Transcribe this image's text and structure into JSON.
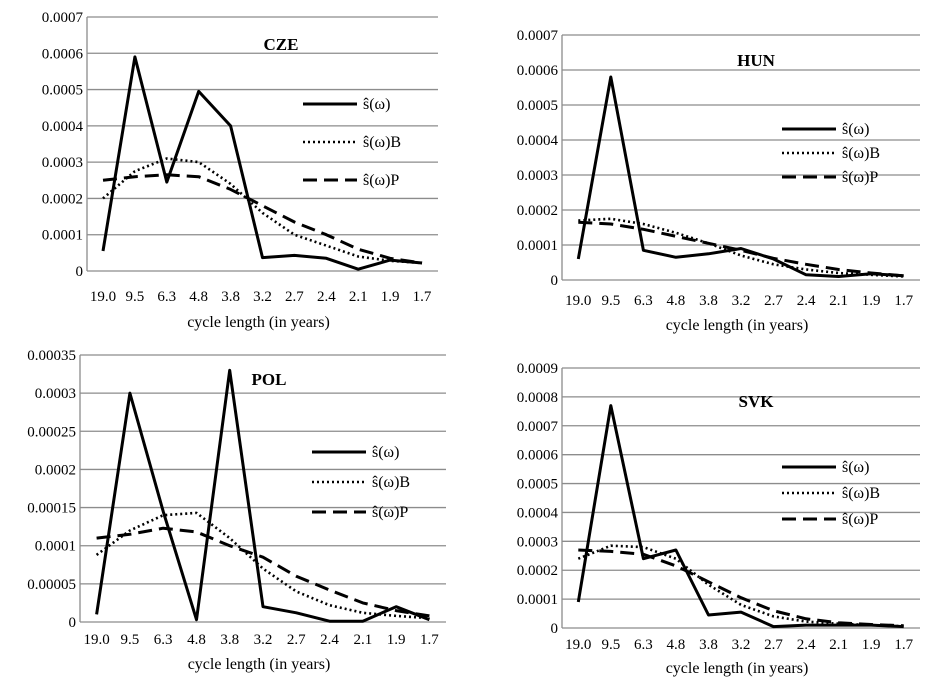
{
  "chart_data": [
    {
      "type": "line",
      "title": "CZE",
      "xlabel": "cycle length (in years)",
      "ylabel": "",
      "ylim": [
        0,
        0.0007
      ],
      "yticks": [
        "0",
        "0.0001",
        "0.0002",
        "0.0003",
        "0.0004",
        "0.0005",
        "0.0006",
        "0.0007"
      ],
      "categories": [
        "19.0",
        "9.5",
        "6.3",
        "4.8",
        "3.8",
        "3.2",
        "2.7",
        "2.4",
        "2.1",
        "1.9",
        "1.7"
      ],
      "legend_position": "right",
      "series": [
        {
          "name": "ŝ(ω)",
          "style": "solid",
          "values": [
            5.5e-05,
            0.00059,
            0.000245,
            0.000495,
            0.0004,
            3.7e-05,
            4.3e-05,
            3.5e-05,
            5e-06,
            3e-05,
            2.2e-05
          ]
        },
        {
          "name": "ŝ(ω)B",
          "style": "dotted",
          "values": [
            0.0002,
            0.000275,
            0.00031,
            0.0003,
            0.00024,
            0.00016,
            0.0001,
            7e-05,
            4e-05,
            2.8e-05,
            2.2e-05
          ]
        },
        {
          "name": "ŝ(ω)P",
          "style": "dashed",
          "values": [
            0.00025,
            0.00026,
            0.000265,
            0.00026,
            0.000225,
            0.00018,
            0.000135,
            0.0001,
            6e-05,
            3.5e-05,
            2.2e-05
          ]
        }
      ]
    },
    {
      "type": "line",
      "title": "HUN",
      "xlabel": "cycle length (in years)",
      "ylabel": "",
      "ylim": [
        0,
        0.0007
      ],
      "yticks": [
        "0",
        "0.0001",
        "0.0002",
        "0.0003",
        "0.0004",
        "0.0005",
        "0.0006",
        "0.0007"
      ],
      "categories": [
        "19.0",
        "9.5",
        "6.3",
        "4.8",
        "3.8",
        "3.2",
        "2.7",
        "2.4",
        "2.1",
        "1.9",
        "1.7"
      ],
      "legend_position": "right",
      "series": [
        {
          "name": "ŝ(ω)",
          "style": "solid",
          "values": [
            6e-05,
            0.00058,
            8.5e-05,
            6.5e-05,
            7.5e-05,
            9e-05,
            6e-05,
            1.5e-05,
            1e-05,
            1.8e-05,
            1.2e-05
          ]
        },
        {
          "name": "ŝ(ω)B",
          "style": "dotted",
          "values": [
            0.00017,
            0.000175,
            0.00016,
            0.000135,
            0.000105,
            7e-05,
            4.5e-05,
            3e-05,
            2e-05,
            1.5e-05,
            1e-05
          ]
        },
        {
          "name": "ŝ(ω)P",
          "style": "dashed",
          "values": [
            0.000165,
            0.00016,
            0.000145,
            0.000125,
            0.000105,
            8.5e-05,
            6.2e-05,
            4.5e-05,
            3e-05,
            2e-05,
            1.2e-05
          ]
        }
      ]
    },
    {
      "type": "line",
      "title": "POL",
      "xlabel": "cycle length (in years)",
      "ylabel": "",
      "ylim": [
        0,
        0.00035
      ],
      "yticks": [
        "0",
        "0.00005",
        "0.0001",
        "0.00015",
        "0.0002",
        "0.00025",
        "0.0003",
        "0.00035"
      ],
      "categories": [
        "19.0",
        "9.5",
        "6.3",
        "4.8",
        "3.8",
        "3.2",
        "2.7",
        "2.4",
        "2.1",
        "1.9",
        "1.7"
      ],
      "legend_position": "right",
      "series": [
        {
          "name": "ŝ(ω)",
          "style": "solid",
          "values": [
            1e-05,
            0.0003,
            0.000145,
            3e-06,
            0.00033,
            2e-05,
            1.2e-05,
            1e-06,
            1e-06,
            2e-05,
            3e-06
          ]
        },
        {
          "name": "ŝ(ω)B",
          "style": "dotted",
          "values": [
            8.8e-05,
            0.00012,
            0.00014,
            0.000143,
            0.00011,
            7e-05,
            4e-05,
            2.2e-05,
            1.2e-05,
            8e-06,
            5e-06
          ]
        },
        {
          "name": "ŝ(ω)P",
          "style": "dashed",
          "values": [
            0.00011,
            0.000115,
            0.000123,
            0.000118,
            0.0001,
            8.5e-05,
            6e-05,
            4.2e-05,
            2.5e-05,
            1.5e-05,
            8e-06
          ]
        }
      ]
    },
    {
      "type": "line",
      "title": "SVK",
      "xlabel": "cycle length (in years)",
      "ylabel": "",
      "ylim": [
        0,
        0.0009
      ],
      "yticks": [
        "0",
        "0.0001",
        "0.0002",
        "0.0003",
        "0.0004",
        "0.0005",
        "0.0006",
        "0.0007",
        "0.0008",
        "0.0009"
      ],
      "categories": [
        "19.0",
        "9.5",
        "6.3",
        "4.8",
        "3.8",
        "3.2",
        "2.7",
        "2.4",
        "2.1",
        "1.9",
        "1.7"
      ],
      "legend_position": "right",
      "series": [
        {
          "name": "ŝ(ω)",
          "style": "solid",
          "values": [
            9e-05,
            0.00077,
            0.00024,
            0.00027,
            4.5e-05,
            5.5e-05,
            5e-06,
            1e-05,
            1e-05,
            1e-05,
            5e-06
          ]
        },
        {
          "name": "ŝ(ω)B",
          "style": "dotted",
          "values": [
            0.00024,
            0.000285,
            0.00028,
            0.00024,
            0.00015,
            8e-05,
            4e-05,
            2.2e-05,
            1.5e-05,
            1e-05,
            6e-06
          ]
        },
        {
          "name": "ŝ(ω)P",
          "style": "dashed",
          "values": [
            0.00027,
            0.000265,
            0.000255,
            0.000215,
            0.00016,
            0.000105,
            6e-05,
            3.2e-05,
            1.8e-05,
            1.2e-05,
            8e-06
          ]
        }
      ]
    }
  ]
}
